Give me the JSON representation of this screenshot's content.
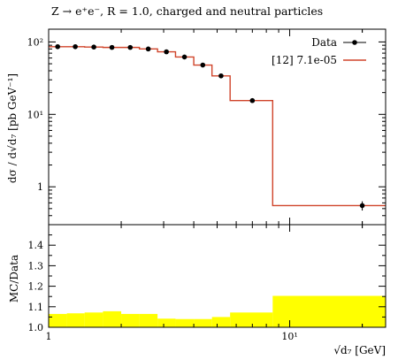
{
  "chart_data": [
    {
      "type": "line",
      "title": "Z → e⁺e⁻, R = 1.0, charged and neutral particles",
      "ylabel": "dσ / d√d₇ [pb GeV⁻¹]",
      "xscale": "log",
      "yscale": "log",
      "xlim": [
        1,
        25
      ],
      "ylim": [
        0.3,
        150
      ],
      "yticks": [
        "1",
        "10¹",
        "10²"
      ],
      "legend_position": "top-right",
      "series": [
        {
          "name": "Data",
          "kind": "points",
          "color": "#000000",
          "x": [
            1.09,
            1.29,
            1.54,
            1.83,
            2.18,
            2.59,
            3.08,
            3.66,
            4.36,
            5.19,
            7.0,
            20.0
          ],
          "y": [
            86,
            86,
            85,
            84,
            84,
            80,
            73,
            62,
            48,
            34,
            15.5,
            0.55
          ],
          "yerr": [
            2,
            2,
            2,
            2,
            2,
            2,
            2,
            2,
            1.5,
            1,
            0.5,
            0.08
          ]
        },
        {
          "name": "[12] 7.1e-05",
          "kind": "step",
          "color": "#d0442a",
          "edges": [
            1.0,
            1.19,
            1.41,
            1.68,
            2.0,
            2.38,
            2.83,
            3.36,
            4.0,
            4.76,
            5.66,
            8.5,
            25.0
          ],
          "values": [
            86,
            86,
            85,
            84,
            84,
            80,
            73,
            62,
            48,
            34,
            15.5,
            0.55
          ]
        }
      ]
    },
    {
      "type": "area",
      "ylabel": "MC/Data",
      "xlabel": "√d₇ [GeV]",
      "xscale": "log",
      "xlim": [
        1,
        25
      ],
      "ylim": [
        1.0,
        1.5
      ],
      "yticks": [
        "1.0",
        "1.1",
        "1.2",
        "1.3",
        "1.4"
      ],
      "xticks": [
        "1",
        "10¹"
      ],
      "band": {
        "color": "#ffff00",
        "edges": [
          1.0,
          1.19,
          1.41,
          1.68,
          2.0,
          2.38,
          2.83,
          3.36,
          4.0,
          4.76,
          5.66,
          8.5,
          25.0
        ],
        "upper": [
          1.065,
          1.068,
          1.072,
          1.078,
          1.065,
          1.065,
          1.042,
          1.04,
          1.04,
          1.05,
          1.072,
          1.153
        ],
        "lower": [
          1.0,
          1.0,
          1.0,
          1.0,
          1.0,
          1.0,
          1.0,
          1.0,
          1.0,
          1.0,
          1.0,
          1.0
        ]
      }
    }
  ]
}
